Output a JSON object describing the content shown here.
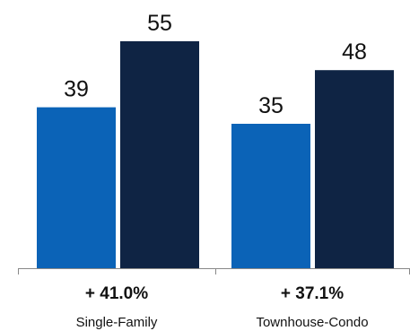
{
  "chart_data": {
    "type": "bar",
    "categories": [
      "Single-Family",
      "Townhouse-Condo"
    ],
    "series": [
      {
        "values": [
          39,
          35
        ],
        "color": "#0b63b7"
      },
      {
        "values": [
          55,
          48
        ],
        "color": "#0f2444"
      }
    ],
    "group_annotations": [
      "+ 41.0%",
      "+ 37.1%"
    ],
    "ylim": [
      0,
      60
    ],
    "grid": false,
    "legend": "none",
    "axis_color": "#888888"
  }
}
